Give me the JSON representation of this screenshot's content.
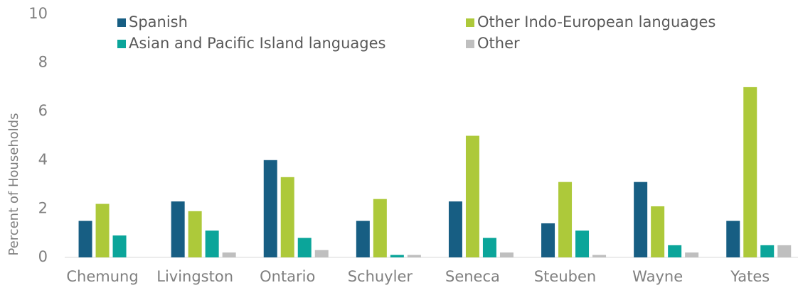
{
  "chart_data": {
    "type": "bar",
    "y_label": "Percent of Households",
    "categories": [
      "Chemung",
      "Livingston",
      "Ontario",
      "Schuyler",
      "Seneca",
      "Steuben",
      "Wayne",
      "Yates"
    ],
    "series": [
      {
        "name": "Spanish",
        "color": "#175e83",
        "values": [
          1.5,
          2.3,
          4.0,
          1.5,
          2.3,
          1.4,
          3.1,
          1.5
        ]
      },
      {
        "name": "Other Indo-European languages",
        "color": "#adc93a",
        "values": [
          2.2,
          1.9,
          3.3,
          2.4,
          5.0,
          3.1,
          2.1,
          7.0
        ]
      },
      {
        "name": "Asian and Pacific Island languages",
        "color": "#0ba59a",
        "values": [
          0.9,
          1.1,
          0.8,
          0.1,
          0.8,
          1.1,
          0.5,
          0.5
        ]
      },
      {
        "name": "Other",
        "color": "#bfbfbf",
        "values": [
          0,
          0.2,
          0.3,
          0.1,
          0.2,
          0.1,
          0.2,
          0.5
        ]
      }
    ],
    "ylim": [
      0,
      10
    ],
    "yticks": [
      0,
      2,
      4,
      6,
      8,
      10
    ],
    "grid": false,
    "legend": "top"
  }
}
